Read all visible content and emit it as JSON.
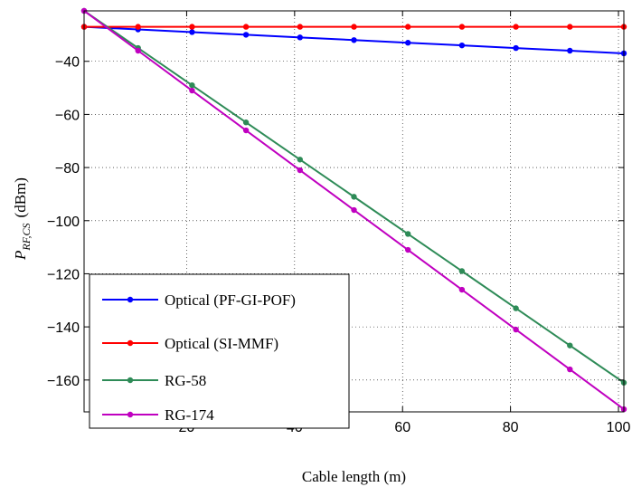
{
  "chart_data": {
    "type": "line",
    "xlabel": "Cable length (m)",
    "ylabel_main": "P",
    "ylabel_sub": "RF,CS",
    "ylabel_unit": "(dBm)",
    "xlim": [
      1,
      101
    ],
    "ylim": [
      -172,
      -21
    ],
    "xticks": [
      20,
      40,
      60,
      80,
      100
    ],
    "yticks": [
      -40,
      -60,
      -80,
      -100,
      -120,
      -140,
      -160
    ],
    "grid": true,
    "legend_position": "bottom-left",
    "x": [
      1,
      11,
      21,
      31,
      41,
      51,
      61,
      71,
      81,
      91,
      101
    ],
    "series": [
      {
        "name": "Optical (PF-GI-POF)",
        "color": "#0000ff",
        "values": [
          -27,
          -28,
          -29,
          -30,
          -31,
          -32,
          -33,
          -34,
          -35,
          -36,
          -37
        ]
      },
      {
        "name": "Optical (SI-MMF)",
        "color": "#ff0000",
        "values": [
          -27,
          -27,
          -27,
          -27,
          -27,
          -27,
          -27,
          -27,
          -27,
          -27,
          -27
        ]
      },
      {
        "name": "RG-58",
        "color": "#2e8b57",
        "values": [
          -21,
          -35,
          -49,
          -63,
          -77,
          -91,
          -105,
          -119,
          -133,
          -147,
          -161
        ]
      },
      {
        "name": "RG-174",
        "color": "#c000c0",
        "values": [
          -21,
          -36,
          -51,
          -66,
          -81,
          -96,
          -111,
          -126,
          -141,
          -156,
          -171
        ]
      }
    ]
  }
}
